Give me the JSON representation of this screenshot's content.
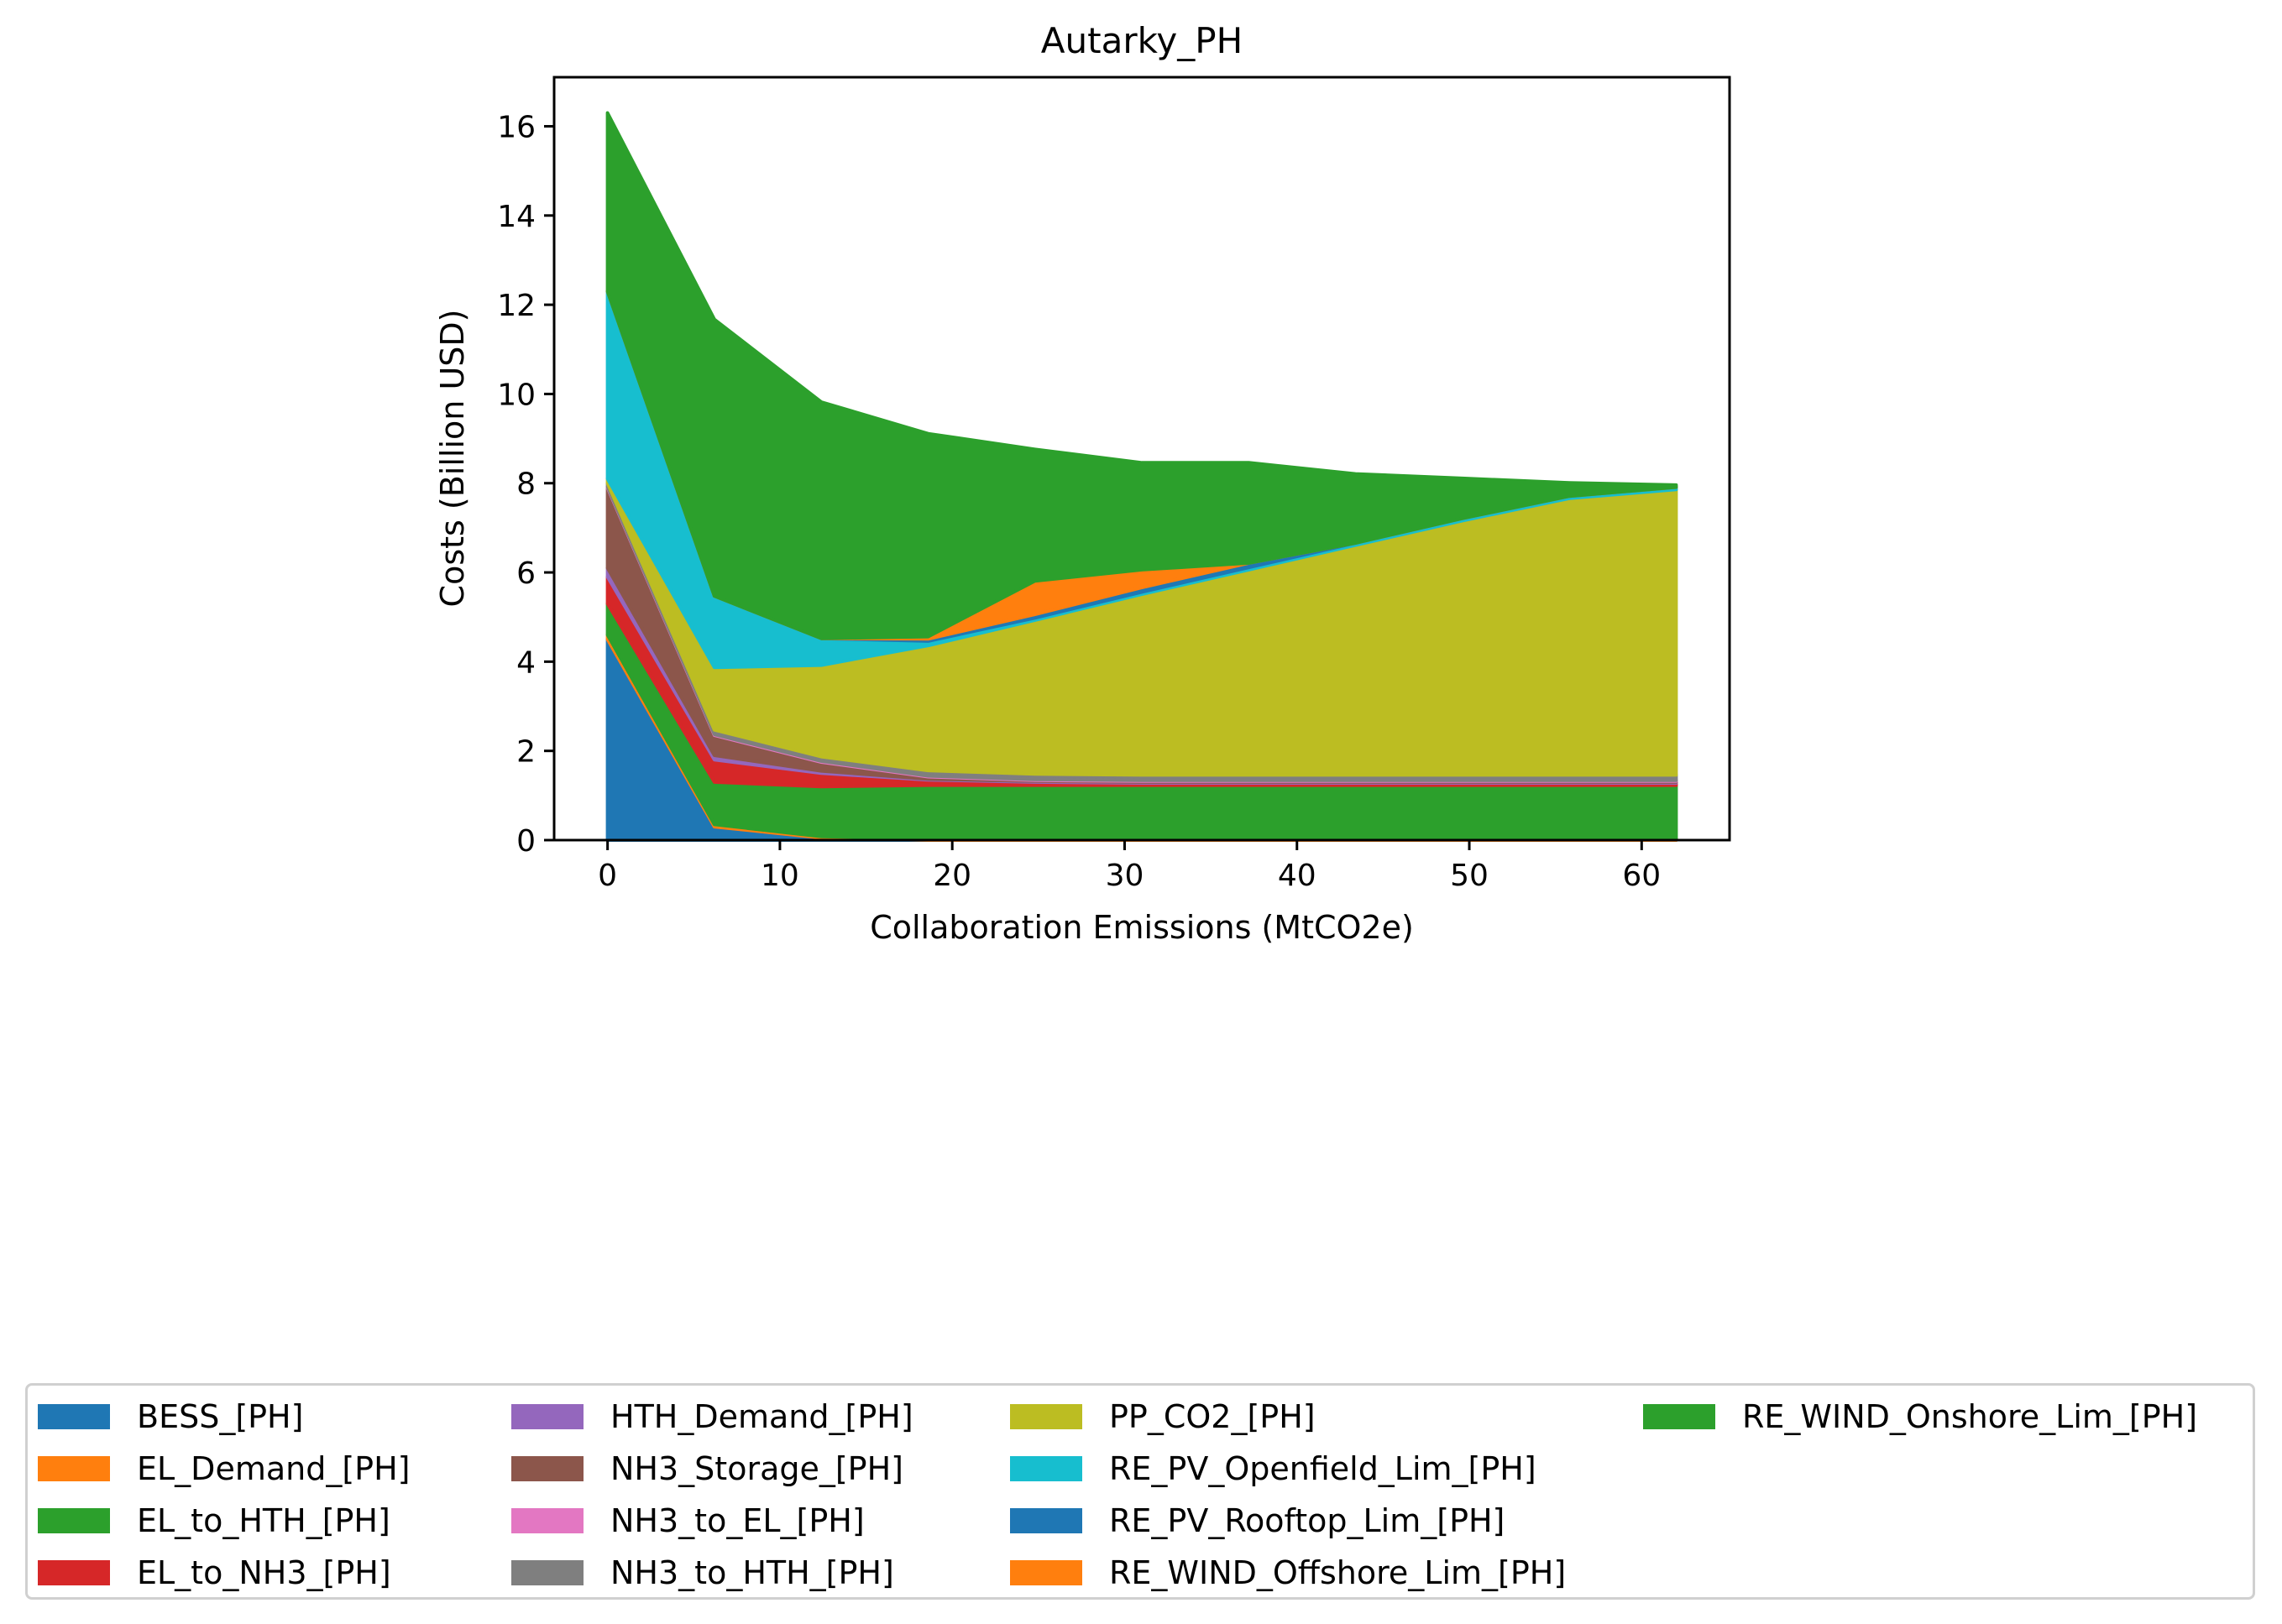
{
  "chart_data": {
    "type": "area",
    "stacked": true,
    "title": "Autarky_PH",
    "xlabel": "Collaboration Emissions (MtCO2e)",
    "ylabel": "Costs (Billion USD)",
    "xlim": [
      -3.1,
      65.1
    ],
    "ylim": [
      0,
      17.1
    ],
    "xticks": [
      0,
      10,
      20,
      30,
      40,
      50,
      60
    ],
    "yticks": [
      0,
      2,
      4,
      6,
      8,
      10,
      12,
      14,
      16
    ],
    "grid": false,
    "legend_position": "bottom",
    "x": [
      0,
      6.2,
      12.4,
      18.6,
      24.8,
      31.0,
      37.2,
      43.4,
      49.6,
      55.8,
      62.0
    ],
    "series": [
      {
        "name": "BESS_[PH]",
        "color": "#1f77b4",
        "values": [
          4.5,
          0.3,
          0.05,
          0,
          0,
          0,
          0,
          0,
          0,
          0,
          0
        ]
      },
      {
        "name": "EL_Demand_[PH]",
        "color": "#ff7f0e",
        "values": [
          0.1,
          0.05,
          0.03,
          0.03,
          0.03,
          0.03,
          0.03,
          0.03,
          0.03,
          0.03,
          0.03
        ]
      },
      {
        "name": "EL_to_HTH_[PH]",
        "color": "#2ca02c",
        "values": [
          0.7,
          0.95,
          1.12,
          1.2,
          1.2,
          1.2,
          1.2,
          1.2,
          1.2,
          1.2,
          1.2
        ]
      },
      {
        "name": "EL_to_NH3_[PH]",
        "color": "#d62728",
        "values": [
          0.6,
          0.5,
          0.3,
          0.12,
          0.07,
          0.05,
          0.05,
          0.05,
          0.05,
          0.05,
          0.05
        ]
      },
      {
        "name": "HTH_Demand_[PH]",
        "color": "#9467bd",
        "values": [
          0.2,
          0.1,
          0.05,
          0.02,
          0.02,
          0.02,
          0.02,
          0.02,
          0.02,
          0.02,
          0.02
        ]
      },
      {
        "name": "NH3_Storage_[PH]",
        "color": "#8c564b",
        "values": [
          1.8,
          0.45,
          0.2,
          0.05,
          0.02,
          0.02,
          0.02,
          0.02,
          0.02,
          0.02,
          0.02
        ]
      },
      {
        "name": "NH3_to_EL_[PH]",
        "color": "#e377c2",
        "values": [
          0.02,
          0.02,
          0.02,
          0.02,
          0.02,
          0.02,
          0.02,
          0.02,
          0.02,
          0.02,
          0.02
        ]
      },
      {
        "name": "NH3_to_HTH_[PH]",
        "color": "#7f7f7f",
        "values": [
          0.08,
          0.1,
          0.1,
          0.12,
          0.12,
          0.12,
          0.12,
          0.12,
          0.12,
          0.12,
          0.12
        ]
      },
      {
        "name": "PP_CO2_[PH]",
        "color": "#bcbd22",
        "values": [
          0.1,
          1.4,
          2.05,
          2.8,
          3.45,
          4.05,
          4.6,
          5.15,
          5.7,
          6.2,
          6.4
        ]
      },
      {
        "name": "RE_PV_Openfield_Lim_[PH]",
        "color": "#17becf",
        "values": [
          4.2,
          1.6,
          0.6,
          0.1,
          0.05,
          0.05,
          0.05,
          0.05,
          0.05,
          0.05,
          0.05
        ]
      },
      {
        "name": "RE_PV_Rooftop_Lim_[PH]",
        "color": "#1f77b4",
        "values": [
          0,
          0,
          0,
          0.05,
          0.08,
          0.1,
          0.1,
          0,
          0,
          0,
          0
        ]
      },
      {
        "name": "RE_WIND_Offshore_Lim_[PH]",
        "color": "#ff7f0e",
        "values": [
          0,
          0,
          0,
          0.05,
          0.75,
          0.4,
          0,
          0,
          0,
          0,
          0
        ]
      },
      {
        "name": "RE_WIND_Onshore_Lim_[PH]",
        "color": "#2ca02c",
        "values": [
          4.0,
          6.2,
          5.3,
          4.55,
          2.95,
          2.4,
          2.25,
          1.55,
          0.9,
          0.3,
          0.05
        ]
      }
    ]
  }
}
